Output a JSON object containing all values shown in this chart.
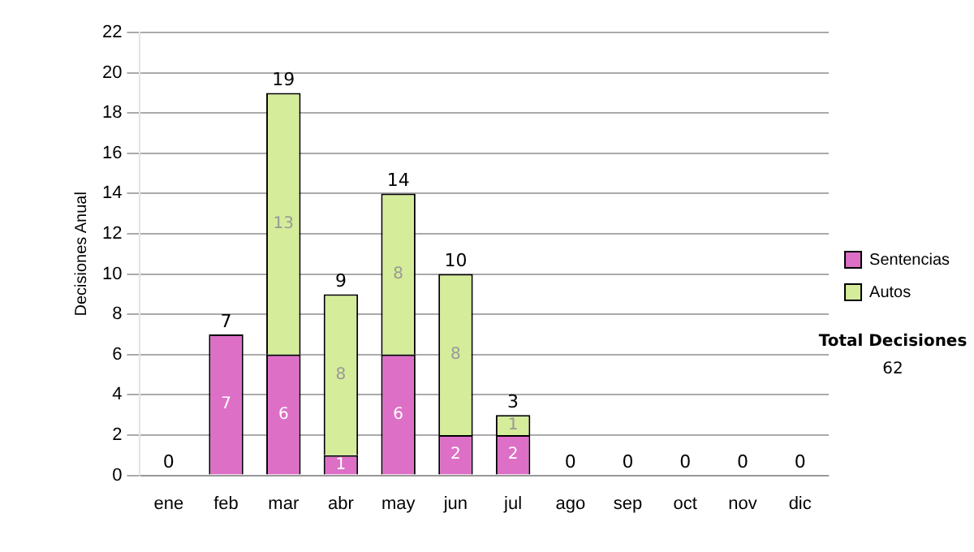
{
  "chart_data": {
    "type": "bar",
    "stacked": true,
    "ylabel": "Decisiones Anual",
    "categories": [
      "ene",
      "feb",
      "mar",
      "abr",
      "may",
      "jun",
      "jul",
      "ago",
      "sep",
      "oct",
      "nov",
      "dic"
    ],
    "series": [
      {
        "name": "Sentencias",
        "color": "#dd6fc6",
        "values": [
          0,
          7,
          6,
          1,
          6,
          2,
          2,
          0,
          0,
          0,
          0,
          0
        ],
        "value_labels": [
          null,
          "7",
          "6",
          "1",
          "6",
          "2",
          "2",
          null,
          null,
          null,
          null,
          null
        ]
      },
      {
        "name": "Autos",
        "color": "#d5ec9a",
        "values": [
          0,
          0,
          13,
          8,
          8,
          8,
          1,
          0,
          0,
          0,
          0,
          0
        ],
        "value_labels": [
          null,
          null,
          "13",
          "8",
          "8",
          "8",
          "1",
          null,
          null,
          null,
          null,
          null
        ]
      }
    ],
    "totals": [
      "0",
      "7",
      "19",
      "9",
      "14",
      "10",
      "3",
      "0",
      "0",
      "0",
      "0",
      "0"
    ],
    "ylim": [
      0,
      22
    ],
    "yticks": [
      0,
      2,
      4,
      6,
      8,
      10,
      12,
      14,
      16,
      18,
      20,
      22
    ],
    "grid": "y",
    "legend": "right",
    "annotations": [
      "Total Decisiones",
      "62"
    ]
  }
}
